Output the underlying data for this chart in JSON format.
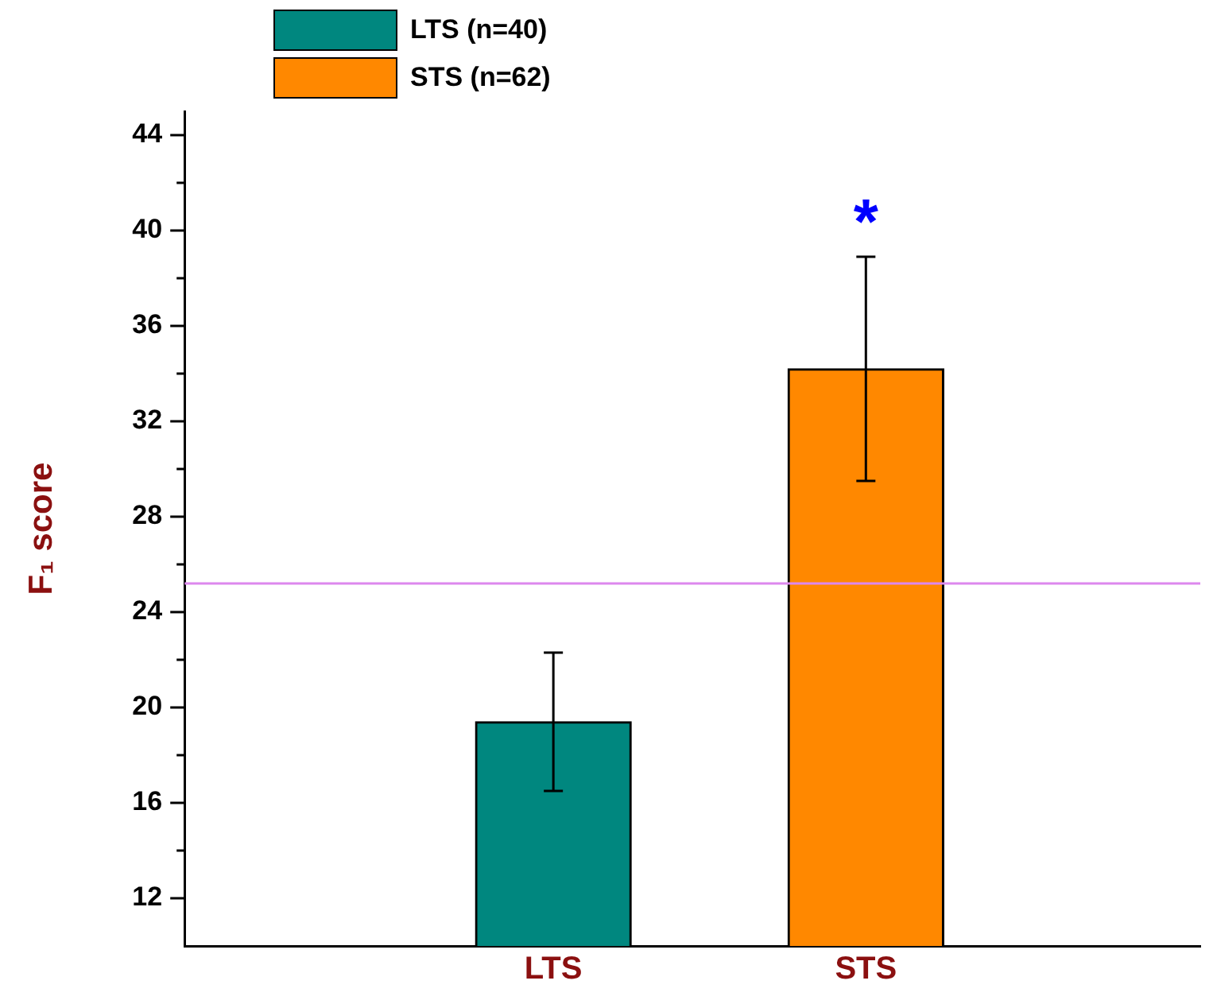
{
  "chart_data": {
    "type": "bar",
    "ylabel": "F₁ score",
    "categories": [
      "LTS",
      "STS"
    ],
    "series": [
      {
        "name": "LTS (n=40)",
        "color": "#00877f",
        "values": [
          19.4,
          null
        ],
        "errors": [
          2.9,
          null
        ]
      },
      {
        "name": "STS (n=62)",
        "color": "#ff8800",
        "values": [
          null,
          34.2
        ],
        "errors": [
          null,
          4.7
        ]
      }
    ],
    "ylim": [
      10,
      45
    ],
    "yticks": [
      12,
      {
        "value": 14,
        "label": null
      },
      16,
      {
        "value": 18,
        "label": null
      },
      20,
      {
        "value": 22,
        "label": null
      },
      24,
      {
        "value": 26,
        "label": null
      },
      28,
      {
        "value": 30,
        "label": null
      },
      32,
      {
        "value": 34,
        "label": null
      },
      36,
      {
        "value": 38,
        "label": null
      },
      40,
      {
        "value": 42,
        "label": null
      },
      44
    ],
    "ref_lines": [
      {
        "axis": "y",
        "value": 25.2,
        "color": "#dd88ee"
      }
    ],
    "annotations": [
      "*"
    ],
    "legend": "top left",
    "grid": false
  }
}
